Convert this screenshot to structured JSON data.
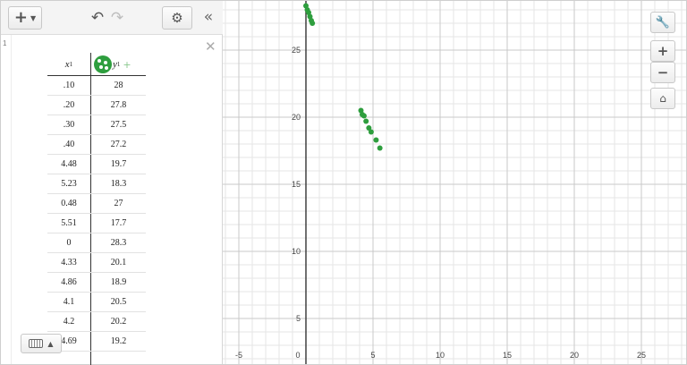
{
  "toolbar": {
    "add_label": "+",
    "add_caret": "▼",
    "undo_glyph": "↶",
    "redo_glyph": "↷",
    "settings_glyph": "⚙",
    "collapse_glyph": "«"
  },
  "expression": {
    "index": "1",
    "delete_glyph": "✕",
    "table": {
      "x_header": "x",
      "x_sub": "1",
      "y_header": "y",
      "y_sub": "1",
      "add_column_glyph": "+",
      "point_color": "#2e9e3e",
      "rows": [
        {
          "x": ".10",
          "y": "28"
        },
        {
          "x": ".20",
          "y": "27.8"
        },
        {
          "x": ".30",
          "y": "27.5"
        },
        {
          "x": ".40",
          "y": "27.2"
        },
        {
          "x": "4.48",
          "y": "19.7"
        },
        {
          "x": "5.23",
          "y": "18.3"
        },
        {
          "x": "0.48",
          "y": "27"
        },
        {
          "x": "5.51",
          "y": "17.7"
        },
        {
          "x": "0",
          "y": "28.3"
        },
        {
          "x": "4.33",
          "y": "20.1"
        },
        {
          "x": "4.86",
          "y": "18.9"
        },
        {
          "x": "4.1",
          "y": "20.5"
        },
        {
          "x": "4.2",
          "y": "20.2"
        },
        {
          "x": "4.69",
          "y": "19.2"
        }
      ]
    }
  },
  "keyboard": {
    "caret": "▲"
  },
  "graph": {
    "x_ticks": [
      "-5",
      "0",
      "5",
      "10",
      "15",
      "20",
      "25"
    ],
    "y_ticks": [
      "5",
      "10",
      "15",
      "20",
      "25"
    ],
    "points_x": [
      0.1,
      0.2,
      0.3,
      0.4,
      4.48,
      5.23,
      0.48,
      5.51,
      0,
      4.33,
      4.86,
      4.1,
      4.2,
      4.69
    ],
    "points_y": [
      28,
      27.8,
      27.5,
      27.2,
      19.7,
      18.3,
      27,
      17.7,
      28.3,
      20.1,
      18.9,
      20.5,
      20.2,
      19.2
    ],
    "grid_color": "#e6e6e6",
    "major_grid_color": "#c9c9c9",
    "axis_color": "#333333"
  },
  "side_buttons": {
    "wrench_glyph": "🔧",
    "zoom_in": "+",
    "zoom_out": "−",
    "home_glyph": "⌂"
  }
}
